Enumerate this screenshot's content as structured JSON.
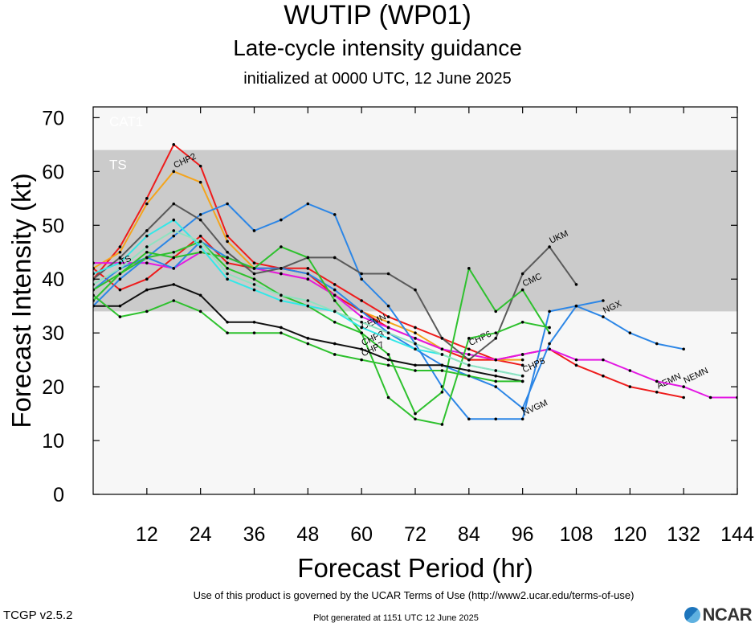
{
  "header": {
    "title": "WUTIP (WP01)",
    "subtitle": "Late-cycle intensity guidance",
    "init_line": "initialized at 0000 UTC, 12 June 2025"
  },
  "footer": {
    "terms": "Use of this product is governed by the UCAR Terms of Use (http://www2.ucar.edu/terms-of-use)",
    "version": "TCGP v2.5.2",
    "generated": "Plot generated at 1151 UTC   12 June 2025",
    "logo_text": "NCAR"
  },
  "chart_data": {
    "type": "line",
    "xlabel": "Forecast Period (hr)",
    "ylabel": "Forecast Intensity (kt)",
    "xlim": [
      0,
      144
    ],
    "ylim": [
      0,
      72
    ],
    "xticks": [
      12,
      24,
      36,
      48,
      60,
      72,
      84,
      96,
      108,
      120,
      132,
      144
    ],
    "yticks": [
      0,
      10,
      20,
      30,
      40,
      50,
      60,
      70
    ],
    "bands": [
      {
        "label": "",
        "from": 0,
        "to": 34,
        "color": "#f7f7f7"
      },
      {
        "label": "TS",
        "from": 34,
        "to": 64,
        "color": "#cbcbcb"
      },
      {
        "label": "CAT1",
        "from": 64,
        "to": 72,
        "color": "#f7f7f7"
      }
    ],
    "series": [
      {
        "name": "CHP6",
        "color": "#ee1c1c",
        "label_x": 84,
        "x": [
          0,
          6,
          12,
          18,
          24,
          30,
          36,
          42,
          48,
          54,
          60,
          66,
          72,
          78,
          84,
          90,
          96
        ],
        "y": [
          40,
          46,
          55,
          65,
          61,
          48,
          43,
          42,
          42,
          39,
          36,
          33,
          31,
          29,
          27,
          25,
          24
        ]
      },
      {
        "name": "CHP2",
        "color": "#f4a41c",
        "label_x": 18,
        "x": [
          0,
          6,
          12,
          18,
          24,
          30,
          36,
          42,
          48,
          54,
          60,
          66,
          72,
          78,
          84,
          90,
          96
        ],
        "y": [
          42,
          45,
          54,
          60,
          58,
          47,
          42,
          41,
          40,
          37,
          34,
          32,
          30,
          27,
          25,
          25,
          25
        ]
      },
      {
        "name": "AEMN",
        "color": "#ee1c1c",
        "label_x": 126,
        "x": [
          0,
          6,
          12,
          18,
          24,
          30,
          36,
          42,
          48,
          54,
          60,
          66,
          72,
          78,
          84,
          90,
          96,
          102,
          108,
          114,
          120,
          126,
          132
        ],
        "y": [
          42,
          38,
          40,
          44,
          48,
          43,
          42,
          42,
          41,
          37,
          34,
          31,
          29,
          27,
          25,
          25,
          26,
          27,
          24,
          22,
          20,
          19,
          18
        ]
      },
      {
        "name": "NEMN",
        "color": "#e318e3",
        "label_x": 132,
        "x": [
          0,
          6,
          12,
          18,
          24,
          30,
          36,
          42,
          48,
          54,
          60,
          66,
          72,
          78,
          84,
          90,
          96,
          102,
          108,
          114,
          120,
          126,
          132,
          138,
          144
        ],
        "y": [
          43,
          43,
          43,
          42,
          45,
          44,
          42,
          41,
          40,
          37,
          33,
          31,
          29,
          27,
          26,
          25,
          26,
          27,
          25,
          25,
          23,
          21,
          20,
          18,
          18
        ]
      },
      {
        "name": "NVGM",
        "color": "#2c86e6",
        "label_x": 96,
        "x": [
          0,
          6,
          12,
          18,
          24,
          30,
          36,
          42,
          48,
          54,
          60,
          66,
          72,
          78,
          84,
          90,
          96,
          102,
          108,
          114
        ],
        "y": [
          38,
          42,
          44,
          48,
          52,
          54,
          49,
          51,
          54,
          52,
          40,
          35,
          28,
          20,
          14,
          14,
          14,
          34,
          35,
          36
        ]
      },
      {
        "name": "NGX",
        "color": "#2c86e6",
        "label_x": 114,
        "x": [
          0,
          6,
          12,
          18,
          24,
          30,
          36,
          42,
          48,
          54,
          60,
          66,
          72,
          78,
          84,
          90,
          96,
          102,
          108,
          114,
          120,
          126,
          132
        ],
        "y": [
          35,
          40,
          44,
          42,
          47,
          44,
          42,
          42,
          41,
          38,
          34,
          30,
          27,
          24,
          22,
          20,
          16,
          28,
          35,
          33,
          30,
          28,
          27
        ]
      },
      {
        "name": "UKM",
        "color": "#5a5a5a",
        "label_x": 102,
        "x": [
          0,
          6,
          12,
          18,
          24,
          30,
          36,
          42,
          48,
          54,
          60,
          66,
          72,
          78,
          84,
          90,
          96,
          102,
          108
        ],
        "y": [
          40,
          44,
          49,
          54,
          51,
          45,
          41,
          42,
          44,
          44,
          41,
          41,
          38,
          29,
          25,
          29,
          41,
          46,
          39
        ]
      },
      {
        "name": "CMC",
        "color": "#2ec12e",
        "label_x": 96,
        "x": [
          0,
          6,
          12,
          18,
          24,
          30,
          36,
          42,
          48,
          54,
          60,
          66,
          72,
          78,
          84,
          90,
          96,
          102
        ],
        "y": [
          38,
          41,
          45,
          44,
          45,
          44,
          42,
          46,
          44,
          36,
          30,
          26,
          15,
          19,
          42,
          34,
          38,
          30
        ]
      },
      {
        "name": "CEMN",
        "color": "#2ec12e",
        "label_x": 60,
        "x": [
          0,
          6,
          12,
          18,
          24,
          30,
          36,
          42,
          48,
          54,
          60,
          66,
          72,
          78,
          84,
          90,
          96,
          102
        ],
        "y": [
          36,
          41,
          44,
          45,
          47,
          42,
          40,
          37,
          35,
          32,
          30,
          18,
          14,
          13,
          29,
          30,
          32,
          31
        ]
      },
      {
        "name": "CHP3",
        "color": "#111111",
        "label_x": 60,
        "x": [
          0,
          6,
          12,
          18,
          24,
          30,
          36,
          42,
          48,
          54,
          60,
          66,
          72,
          78,
          84,
          90,
          96
        ],
        "y": [
          35,
          35,
          38,
          39,
          37,
          32,
          32,
          31,
          29,
          28,
          27,
          25,
          24,
          24,
          23,
          22,
          21
        ]
      },
      {
        "name": "CHP7",
        "color": "#2ec12e",
        "label_x": 60,
        "x": [
          0,
          6,
          12,
          18,
          24,
          30,
          36,
          42,
          48,
          54,
          60,
          66,
          72,
          78,
          84,
          90,
          96
        ],
        "y": [
          37,
          33,
          34,
          36,
          34,
          30,
          30,
          30,
          28,
          26,
          25,
          24,
          23,
          23,
          22,
          21,
          21
        ]
      },
      {
        "name": "CHP5",
        "color": "#33e8e8",
        "label_x": 96,
        "x": [
          0,
          6,
          12,
          18,
          24,
          30,
          36,
          42,
          48,
          54,
          60,
          66,
          72,
          78,
          84,
          90,
          96
        ],
        "y": [
          41,
          43,
          48,
          51,
          46,
          40,
          38,
          36,
          35,
          34,
          31,
          29,
          27,
          26,
          24,
          23,
          22
        ]
      },
      {
        "name": "TS",
        "color": "#8fe2c0",
        "label_x": 6,
        "x": [
          0,
          6,
          12,
          18,
          24,
          30,
          36,
          42,
          48,
          54,
          60,
          66,
          72,
          78,
          84,
          90,
          96
        ],
        "y": [
          39,
          42,
          46,
          49,
          47,
          41,
          39,
          37,
          36,
          34,
          32,
          30,
          28,
          26,
          24,
          23,
          22
        ]
      }
    ]
  }
}
